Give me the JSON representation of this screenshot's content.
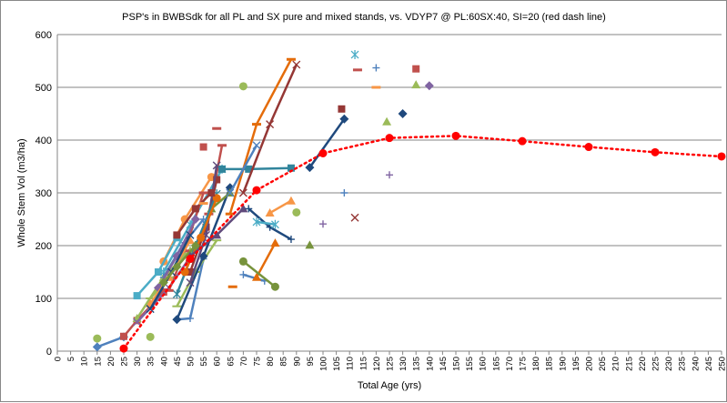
{
  "chart_data": {
    "type": "scatter",
    "title": "PSP's in BWBSdk for all PL and SX pure and mixed stands, vs. VDYP7 @ PL:60SX:40, SI=20 (red dash line)",
    "xlabel": "Total Age (yrs)",
    "ylabel": "Whole Stem Vol (m3/ha)",
    "xlim": [
      0,
      250
    ],
    "ylim": [
      0,
      600
    ],
    "x_ticks": [
      0,
      5,
      10,
      15,
      20,
      25,
      30,
      35,
      40,
      45,
      50,
      55,
      60,
      65,
      70,
      75,
      80,
      85,
      90,
      95,
      100,
      105,
      110,
      115,
      120,
      125,
      130,
      135,
      140,
      145,
      150,
      155,
      160,
      165,
      170,
      175,
      180,
      185,
      190,
      195,
      200,
      205,
      210,
      215,
      220,
      225,
      230,
      235,
      240,
      245,
      250
    ],
    "y_ticks": [
      0,
      100,
      200,
      300,
      400,
      500,
      600
    ],
    "grid": "horizontal",
    "legend": "none",
    "vdyp_curve": {
      "color": "#ff0000",
      "style": "dotted",
      "x": [
        25,
        50,
        75,
        100,
        125,
        150,
        175,
        200,
        225,
        250
      ],
      "y": [
        5,
        175,
        305,
        375,
        404,
        408,
        398,
        387,
        377,
        369
      ]
    },
    "psp_series": [
      {
        "color": "#4f81bd",
        "marker": "diamond",
        "x": [
          15,
          25
        ],
        "y": [
          8,
          27
        ]
      },
      {
        "color": "#c0504d",
        "marker": "square",
        "x": [
          25,
          30,
          40
        ],
        "y": [
          28,
          58,
          112
        ]
      },
      {
        "color": "#9bbb59",
        "marker": "triangle",
        "x": [
          30,
          40,
          50
        ],
        "y": [
          62,
          140,
          190
        ]
      },
      {
        "color": "#8064a2",
        "marker": "x",
        "x": [
          30,
          42,
          55
        ],
        "y": [
          55,
          120,
          215
        ]
      },
      {
        "color": "#4bacc6",
        "marker": "star",
        "x": [
          40,
          50,
          62
        ],
        "y": [
          150,
          240,
          345
        ]
      },
      {
        "color": "#f79646",
        "marker": "circle",
        "x": [
          40,
          48,
          58
        ],
        "y": [
          170,
          250,
          330
        ]
      },
      {
        "color": "#4f81bd",
        "marker": "plus",
        "x": [
          45,
          50,
          55
        ],
        "y": [
          60,
          62,
          175
        ]
      },
      {
        "color": "#c0504d",
        "marker": "dash",
        "x": [
          50,
          57,
          62
        ],
        "y": [
          170,
          260,
          390
        ]
      },
      {
        "color": "#9bbb59",
        "marker": "bar",
        "x": [
          45,
          52,
          60
        ],
        "y": [
          85,
          150,
          210
        ]
      },
      {
        "color": "#1f497d",
        "marker": "diamond",
        "x": [
          45,
          55,
          65
        ],
        "y": [
          60,
          180,
          310
        ]
      },
      {
        "color": "#953735",
        "marker": "square",
        "x": [
          50,
          56,
          60
        ],
        "y": [
          150,
          235,
          325
        ]
      },
      {
        "color": "#77933c",
        "marker": "triangle",
        "x": [
          52,
          58,
          65
        ],
        "y": [
          200,
          270,
          300
        ]
      },
      {
        "color": "#604a7b",
        "marker": "x",
        "x": [
          50,
          56,
          60
        ],
        "y": [
          130,
          220,
          352
        ]
      },
      {
        "color": "#31859c",
        "marker": "star",
        "x": [
          45,
          52,
          60
        ],
        "y": [
          108,
          200,
          298
        ]
      },
      {
        "color": "#e46c0a",
        "marker": "circle",
        "x": [
          48,
          54,
          60
        ],
        "y": [
          150,
          215,
          290
        ]
      },
      {
        "color": "#4f81bd",
        "marker": "plus",
        "x": [
          40,
          47,
          55
        ],
        "y": [
          140,
          200,
          250
        ]
      },
      {
        "color": "#c0504d",
        "marker": "dash",
        "x": [
          42,
          48,
          55
        ],
        "y": [
          115,
          190,
          300
        ]
      },
      {
        "color": "#9bbb59",
        "marker": "bar",
        "x": [
          35,
          42,
          48
        ],
        "y": [
          100,
          140,
          185
        ]
      },
      {
        "color": "#8064a2",
        "marker": "diamond",
        "x": [
          38,
          45,
          52
        ],
        "y": [
          120,
          180,
          250
        ]
      },
      {
        "color": "#4bacc6",
        "marker": "square",
        "x": [
          30,
          38,
          45
        ],
        "y": [
          105,
          150,
          215
        ]
      },
      {
        "color": "#f79646",
        "marker": "triangle",
        "x": [
          35,
          42,
          50
        ],
        "y": [
          90,
          140,
          210
        ]
      },
      {
        "color": "#1f497d",
        "marker": "x",
        "x": [
          35,
          43,
          50
        ],
        "y": [
          80,
          150,
          220
        ]
      },
      {
        "color": "#953735",
        "marker": "square",
        "x": [
          45,
          52,
          58
        ],
        "y": [
          220,
          270,
          300
        ]
      },
      {
        "color": "#77933c",
        "marker": "diamond",
        "x": [
          40,
          45,
          52
        ],
        "y": [
          130,
          160,
          200
        ]
      },
      {
        "color": "#604a7b",
        "marker": "triangle",
        "x": [
          50,
          60,
          70
        ],
        "y": [
          180,
          220,
          270
        ]
      },
      {
        "color": "#31859c",
        "marker": "square",
        "x": [
          62,
          72,
          88
        ],
        "y": [
          345,
          345,
          347
        ]
      },
      {
        "color": "#e46c0a",
        "marker": "dash",
        "x": [
          65,
          75,
          88
        ],
        "y": [
          260,
          430,
          553
        ]
      },
      {
        "color": "#953735",
        "marker": "x",
        "x": [
          70,
          80,
          90
        ],
        "y": [
          300,
          430,
          543
        ]
      },
      {
        "color": "#4f81bd",
        "marker": "x",
        "x": [
          65,
          75
        ],
        "y": [
          300,
          390
        ]
      },
      {
        "color": "#1f497d",
        "marker": "plus",
        "x": [
          72,
          80,
          88
        ],
        "y": [
          270,
          235,
          212
        ]
      },
      {
        "color": "#4f81bd",
        "marker": "plus",
        "x": [
          70,
          78
        ],
        "y": [
          145,
          133
        ]
      },
      {
        "color": "#e46c0a",
        "marker": "triangle",
        "x": [
          75,
          82
        ],
        "y": [
          140,
          205
        ]
      },
      {
        "color": "#77933c",
        "marker": "circle",
        "x": [
          70,
          82
        ],
        "y": [
          170,
          122
        ]
      },
      {
        "color": "#f79646",
        "marker": "triangle",
        "x": [
          80,
          88
        ],
        "y": [
          262,
          285
        ]
      },
      {
        "color": "#4bacc6",
        "marker": "star",
        "x": [
          75,
          82
        ],
        "y": [
          245,
          240
        ]
      },
      {
        "color": "#1f497d",
        "marker": "diamond",
        "x": [
          95,
          108
        ],
        "y": [
          348,
          440
        ]
      },
      {
        "color": "#9bbb59",
        "marker": "circle",
        "x": [
          70
        ],
        "y": [
          502
        ]
      },
      {
        "color": "#c0504d",
        "marker": "dash",
        "x": [
          60
        ],
        "y": [
          422
        ]
      },
      {
        "color": "#c0504d",
        "marker": "square",
        "x": [
          55
        ],
        "y": [
          387
        ]
      },
      {
        "color": "#f79646",
        "marker": "dash",
        "x": [
          55
        ],
        "y": [
          280
        ]
      },
      {
        "color": "#9bbb59",
        "marker": "circle",
        "x": [
          15
        ],
        "y": [
          24
        ]
      },
      {
        "color": "#9bbb59",
        "marker": "circle",
        "x": [
          35
        ],
        "y": [
          27
        ]
      },
      {
        "color": "#e46c0a",
        "marker": "dash",
        "x": [
          66
        ],
        "y": [
          122
        ]
      },
      {
        "color": "#9bbb59",
        "marker": "circle",
        "x": [
          90
        ],
        "y": [
          263
        ]
      },
      {
        "color": "#77933c",
        "marker": "triangle",
        "x": [
          95
        ],
        "y": [
          201
        ]
      },
      {
        "color": "#8064a2",
        "marker": "plus",
        "x": [
          100
        ],
        "y": [
          241
        ]
      },
      {
        "color": "#4f81bd",
        "marker": "plus",
        "x": [
          108
        ],
        "y": [
          300
        ]
      },
      {
        "color": "#953735",
        "marker": "x",
        "x": [
          112
        ],
        "y": [
          253
        ]
      },
      {
        "color": "#953735",
        "marker": "square",
        "x": [
          107
        ],
        "y": [
          459
        ]
      },
      {
        "color": "#4bacc6",
        "marker": "star",
        "x": [
          112
        ],
        "y": [
          562
        ]
      },
      {
        "color": "#c0504d",
        "marker": "dash",
        "x": [
          113
        ],
        "y": [
          533
        ]
      },
      {
        "color": "#4f81bd",
        "marker": "plus",
        "x": [
          120
        ],
        "y": [
          537
        ]
      },
      {
        "color": "#f79646",
        "marker": "dash",
        "x": [
          120
        ],
        "y": [
          500
        ]
      },
      {
        "color": "#9bbb59",
        "marker": "triangle",
        "x": [
          124
        ],
        "y": [
          435
        ]
      },
      {
        "color": "#8064a2",
        "marker": "plus",
        "x": [
          125
        ],
        "y": [
          334
        ]
      },
      {
        "color": "#1f497d",
        "marker": "diamond",
        "x": [
          130
        ],
        "y": [
          450
        ]
      },
      {
        "color": "#c0504d",
        "marker": "square",
        "x": [
          135
        ],
        "y": [
          535
        ]
      },
      {
        "color": "#9bbb59",
        "marker": "triangle",
        "x": [
          135
        ],
        "y": [
          505
        ]
      },
      {
        "color": "#8064a2",
        "marker": "diamond",
        "x": [
          140
        ],
        "y": [
          503
        ]
      }
    ]
  }
}
